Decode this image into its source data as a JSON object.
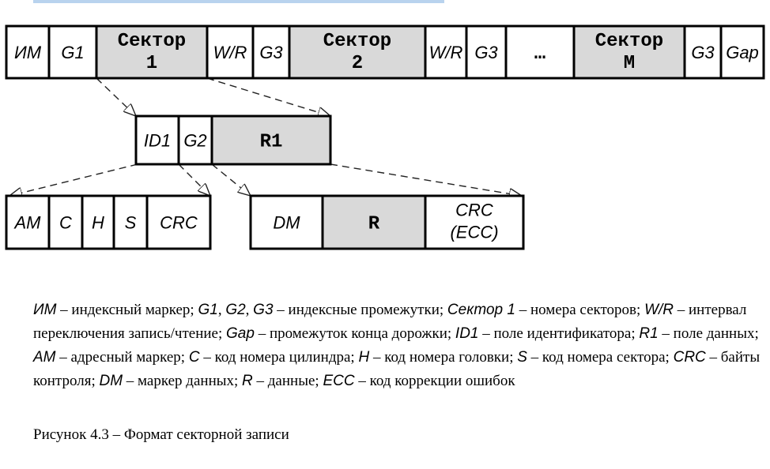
{
  "track": [
    {
      "label": "ИМ",
      "style": "italic",
      "fill": "white"
    },
    {
      "label": "G1",
      "style": "italic",
      "fill": "white"
    },
    {
      "label": "Сектор 1",
      "style": "mono",
      "fill": "gray"
    },
    {
      "label": "W/R",
      "style": "italic",
      "fill": "white"
    },
    {
      "label": "G3",
      "style": "italic",
      "fill": "white"
    },
    {
      "label": "Сектор 2",
      "style": "mono",
      "fill": "gray"
    },
    {
      "label": "W/R",
      "style": "italic",
      "fill": "white"
    },
    {
      "label": "G3",
      "style": "italic",
      "fill": "white"
    },
    {
      "label": "…",
      "style": "mono",
      "fill": "white"
    },
    {
      "label": "Сектор M",
      "style": "mono",
      "fill": "gray"
    },
    {
      "label": "G3",
      "style": "italic",
      "fill": "white"
    },
    {
      "label": "Gap",
      "style": "italic",
      "fill": "white"
    }
  ],
  "sector": [
    {
      "label": "ID1",
      "style": "italic",
      "fill": "white"
    },
    {
      "label": "G2",
      "style": "italic",
      "fill": "white"
    },
    {
      "label": "R1",
      "style": "mono",
      "fill": "gray"
    }
  ],
  "id_field": [
    {
      "label": "AM",
      "style": "italic",
      "fill": "white"
    },
    {
      "label": "C",
      "style": "italic",
      "fill": "white"
    },
    {
      "label": "H",
      "style": "italic",
      "fill": "white"
    },
    {
      "label": "S",
      "style": "italic",
      "fill": "white"
    },
    {
      "label": "CRC",
      "style": "italic",
      "fill": "white"
    }
  ],
  "data_field": [
    {
      "label": "DM",
      "style": "italic",
      "fill": "white"
    },
    {
      "label": "R",
      "style": "mono",
      "fill": "gray"
    },
    {
      "label": "CRC (ECC)",
      "style": "italic",
      "fill": "white"
    }
  ],
  "legend": {
    "items": [
      {
        "term": "ИМ",
        "text": " – индексный маркер; "
      },
      {
        "term": "G1",
        "text": ", "
      },
      {
        "term": "G2",
        "text": ", "
      },
      {
        "term": "G3",
        "text": " – индексные промежутки; "
      },
      {
        "term": "Сектор 1",
        "text": " – номера секторов; "
      },
      {
        "term": "W/R",
        "text": " – интервал переключения запись/чтение; "
      },
      {
        "term": "Gap",
        "text": " – промежуток конца дорожки; "
      },
      {
        "term": "ID1",
        "text": " – поле идентификатора; "
      },
      {
        "term": "R1",
        "text": " – поле данных; "
      },
      {
        "term": "AM",
        "text": " – адресный маркер; "
      },
      {
        "term": "C",
        "text": " – код номера цилиндра; "
      },
      {
        "term": "H",
        "text": " – код номера головки; "
      },
      {
        "term": "S",
        "text": " – код номера сектора; "
      },
      {
        "term": "CRC",
        "text": " – байты контроля; "
      },
      {
        "term": "DM",
        "text": " – маркер данных; "
      },
      {
        "term": "R",
        "text": " – данные; "
      },
      {
        "term": "ECC",
        "text": " – код коррекции ошибок"
      }
    ]
  },
  "caption": "Рисунок 4.3 – Формат секторной записи",
  "colors": {
    "gray_fill": "#d9d9d9",
    "stroke": "#000000"
  }
}
